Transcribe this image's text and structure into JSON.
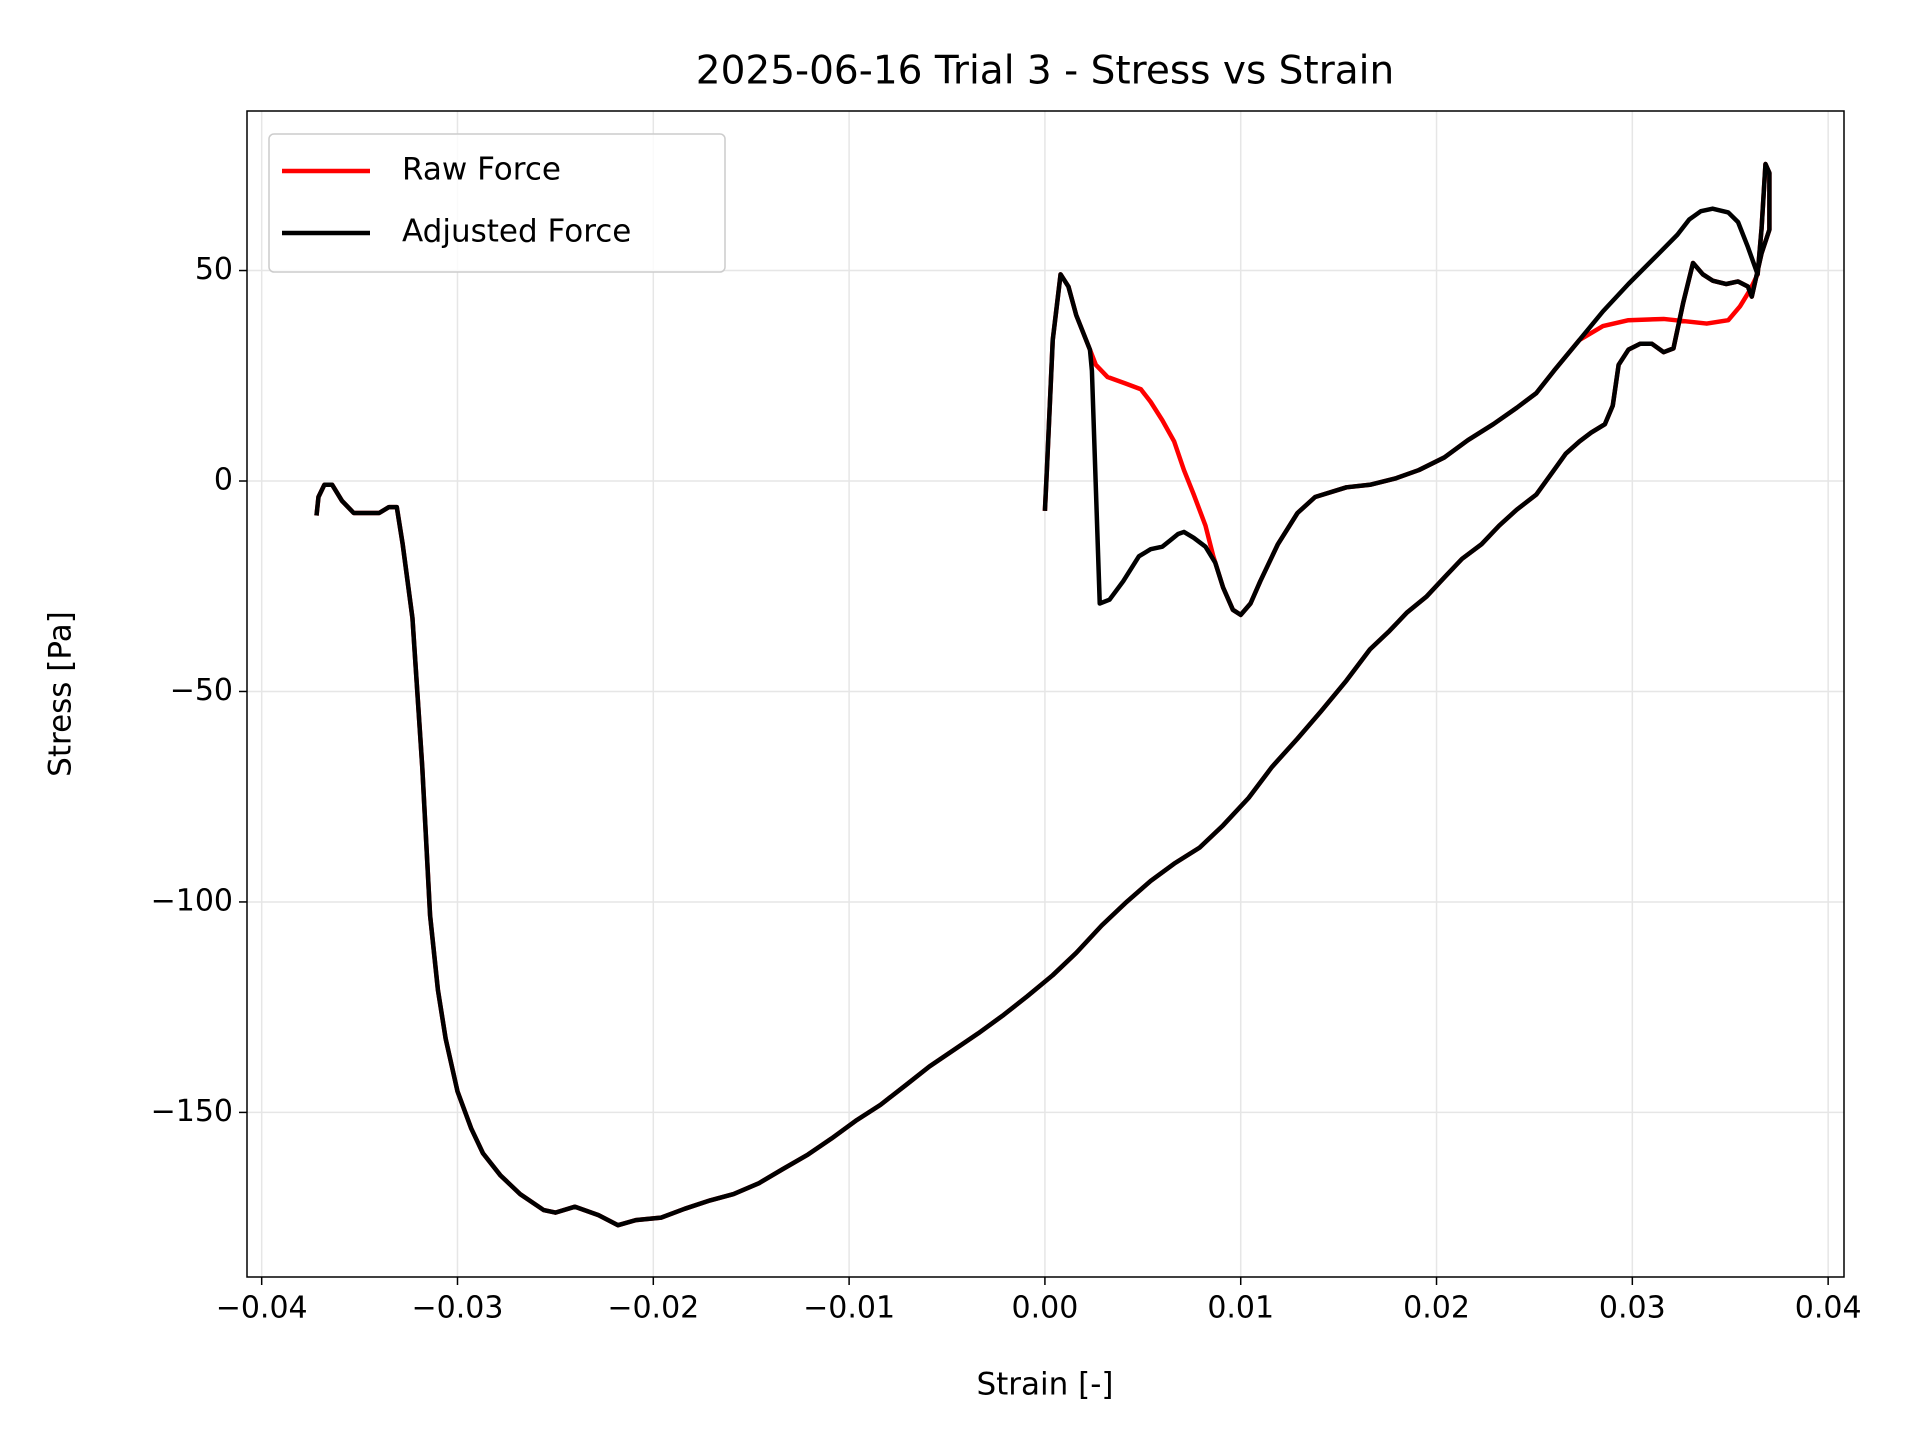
{
  "chart_data": {
    "type": "line",
    "title": "2025-06-16 Trial 3 - Stress vs Strain",
    "x_label": "Strain [-]",
    "y_label": "Stress [Pa]",
    "xlim": [
      -0.04075,
      0.04081
    ],
    "ylim": [
      -189.1,
      87.9
    ],
    "xticks": [
      {
        "value": -0.04,
        "label": "−0.04"
      },
      {
        "value": -0.03,
        "label": "−0.03"
      },
      {
        "value": -0.02,
        "label": "−0.02"
      },
      {
        "value": -0.01,
        "label": "−0.01"
      },
      {
        "value": 0,
        "label": "0.00"
      },
      0.01,
      0.02,
      0.03,
      0.04
    ],
    "yticks": [
      {
        "value": -150,
        "label": "−150"
      },
      {
        "value": -100,
        "label": "−100"
      },
      {
        "value": -50,
        "label": "−50"
      },
      0,
      50
    ],
    "grid": true,
    "legend": "upper left",
    "series": [
      {
        "name": "Raw Force",
        "color": "#ff0000",
        "x": [
          0.0,
          0.0001,
          0.0004,
          0.0008,
          0.0012,
          0.0016,
          0.0023,
          0.0026,
          0.0032,
          0.0041,
          0.0049,
          0.0054,
          0.006,
          0.0066,
          0.0071,
          0.0076,
          0.0082,
          0.0086,
          0.0091,
          0.0096,
          0.01,
          0.0105,
          0.011,
          0.0119,
          0.0129,
          0.0138,
          0.0154,
          0.0166,
          0.0179,
          0.0191,
          0.0204,
          0.0216,
          0.0229,
          0.0241,
          0.0251,
          0.026,
          0.0273,
          0.0285,
          0.0298,
          0.0316,
          0.0338,
          0.0349,
          0.0355,
          0.036,
          0.0364,
          0.0366,
          0.0368,
          0.037,
          0.037,
          0.0366,
          0.0361,
          0.0359,
          0.0354,
          0.0348,
          0.0341,
          0.0336,
          0.0331,
          0.0326,
          0.0321,
          0.0316,
          0.031,
          0.0304,
          0.0298,
          0.0293,
          0.029,
          0.0286,
          0.0279,
          0.0273,
          0.0266,
          0.026,
          0.0251,
          0.0241,
          0.0232,
          0.0223,
          0.0213,
          0.0204,
          0.0195,
          0.0185,
          0.0176,
          0.0166,
          0.0154,
          0.0141,
          0.0129,
          0.0116,
          0.0104,
          0.0091,
          0.0079,
          0.0066,
          0.0054,
          0.0041,
          0.0029,
          0.0016,
          0.0004,
          -0.0009,
          -0.0021,
          -0.0034,
          -0.0046,
          -0.0059,
          -0.0071,
          -0.0084,
          -0.0096,
          -0.0109,
          -0.0121,
          -0.0134,
          -0.0146,
          -0.0159,
          -0.0171,
          -0.0184,
          -0.0196,
          -0.0209,
          -0.0218,
          -0.0228,
          -0.024,
          -0.025,
          -0.0256,
          -0.0268,
          -0.0278,
          -0.0287,
          -0.0293,
          -0.03,
          -0.0306,
          -0.031,
          -0.0314,
          -0.0318,
          -0.0323,
          -0.0328,
          -0.0331,
          -0.0335,
          -0.034,
          -0.0346,
          -0.0353,
          -0.0359,
          -0.0364,
          -0.0368,
          -0.0371,
          -0.0372
        ],
        "values": [
          -7.1,
          2.6,
          33.5,
          49.1,
          46.2,
          39.4,
          31.2,
          27.6,
          24.7,
          23.2,
          21.8,
          18.8,
          14.4,
          9.4,
          2.6,
          -3.2,
          -10.6,
          -17.9,
          -25.3,
          -30.6,
          -31.8,
          -29.1,
          -23.8,
          -15.0,
          -7.6,
          -3.8,
          -1.5,
          -0.9,
          0.6,
          2.6,
          5.6,
          9.7,
          13.5,
          17.4,
          20.9,
          26.2,
          33.5,
          36.8,
          38.2,
          38.5,
          37.4,
          38.2,
          41.5,
          45.3,
          49.1,
          60.0,
          75.3,
          73.2,
          59.7,
          54.1,
          43.8,
          46.2,
          47.4,
          46.8,
          47.6,
          49.1,
          51.8,
          42.4,
          31.5,
          30.6,
          32.6,
          32.6,
          31.2,
          27.6,
          17.9,
          13.5,
          11.5,
          9.4,
          6.5,
          2.6,
          -3.2,
          -6.8,
          -10.6,
          -15.0,
          -18.5,
          -22.9,
          -27.4,
          -31.2,
          -35.6,
          -40.0,
          -47.4,
          -54.7,
          -61.2,
          -67.9,
          -75.3,
          -81.8,
          -87.1,
          -90.9,
          -95.0,
          -100.3,
          -105.6,
          -112.1,
          -117.4,
          -122.4,
          -126.8,
          -131.2,
          -135.0,
          -139.1,
          -143.5,
          -148.2,
          -151.8,
          -156.2,
          -160.0,
          -163.5,
          -166.8,
          -169.4,
          -170.9,
          -172.9,
          -175.0,
          -175.6,
          -176.8,
          -174.4,
          -172.4,
          -173.8,
          -173.2,
          -169.4,
          -165.0,
          -159.7,
          -153.8,
          -145.0,
          -132.6,
          -120.9,
          -103.2,
          -67.9,
          -32.6,
          -15.0,
          -6.2,
          -6.2,
          -7.6,
          -7.6,
          -7.6,
          -4.7,
          -0.9,
          -0.9,
          -3.8,
          -8.2
        ]
      },
      {
        "name": "Adjusted Force",
        "color": "#000000",
        "x": [
          0.0,
          0.0001,
          0.0004,
          0.0008,
          0.0012,
          0.0016,
          0.0023,
          0.0024,
          0.0028,
          0.0033,
          0.004,
          0.0048,
          0.0054,
          0.006,
          0.0064,
          0.0068,
          0.0071,
          0.0076,
          0.0082,
          0.0087,
          0.0091,
          0.0096,
          0.01,
          0.0105,
          0.011,
          0.0119,
          0.0129,
          0.0138,
          0.0154,
          0.0166,
          0.0179,
          0.0191,
          0.0204,
          0.0216,
          0.0229,
          0.0241,
          0.0251,
          0.026,
          0.0273,
          0.0285,
          0.0298,
          0.0313,
          0.0323,
          0.0329,
          0.0335,
          0.0341,
          0.0349,
          0.0354,
          0.0359,
          0.0364,
          0.0366,
          0.0368,
          0.037,
          0.037,
          0.0366,
          0.0361,
          0.0359,
          0.0354,
          0.0348,
          0.0341,
          0.0336,
          0.0331,
          0.0326,
          0.0321,
          0.0316,
          0.031,
          0.0304,
          0.0298,
          0.0293,
          0.029,
          0.0286,
          0.0279,
          0.0273,
          0.0266,
          0.026,
          0.0251,
          0.0241,
          0.0232,
          0.0223,
          0.0213,
          0.0204,
          0.0195,
          0.0185,
          0.0176,
          0.0166,
          0.0154,
          0.0141,
          0.0129,
          0.0116,
          0.0104,
          0.0091,
          0.0079,
          0.0066,
          0.0054,
          0.0041,
          0.0029,
          0.0016,
          0.0004,
          -0.0009,
          -0.0021,
          -0.0034,
          -0.0046,
          -0.0059,
          -0.0071,
          -0.0084,
          -0.0096,
          -0.0109,
          -0.0121,
          -0.0134,
          -0.0146,
          -0.0159,
          -0.0171,
          -0.0184,
          -0.0196,
          -0.0209,
          -0.0218,
          -0.0228,
          -0.024,
          -0.025,
          -0.0256,
          -0.0268,
          -0.0278,
          -0.0287,
          -0.0293,
          -0.03,
          -0.0306,
          -0.031,
          -0.0314,
          -0.0318,
          -0.0323,
          -0.0328,
          -0.0331,
          -0.0335,
          -0.034,
          -0.0346,
          -0.0353,
          -0.0359,
          -0.0364,
          -0.0368,
          -0.0371,
          -0.0372
        ],
        "values": [
          -7.1,
          2.6,
          33.5,
          49.1,
          46.2,
          39.4,
          31.2,
          26.2,
          -29.1,
          -28.2,
          -23.8,
          -17.9,
          -16.2,
          -15.6,
          -14.1,
          -12.6,
          -12.1,
          -13.5,
          -15.6,
          -19.4,
          -25.3,
          -30.6,
          -31.8,
          -29.1,
          -23.8,
          -15.0,
          -7.6,
          -3.8,
          -1.5,
          -0.9,
          0.6,
          2.6,
          5.6,
          9.7,
          13.5,
          17.4,
          20.9,
          26.2,
          33.5,
          40.3,
          46.8,
          53.8,
          58.5,
          62.1,
          64.1,
          64.7,
          63.8,
          61.5,
          55.6,
          49.1,
          60.0,
          75.3,
          73.2,
          59.7,
          54.1,
          43.8,
          46.2,
          47.4,
          46.8,
          47.6,
          49.1,
          51.8,
          42.4,
          31.5,
          30.6,
          32.6,
          32.6,
          31.2,
          27.6,
          17.9,
          13.5,
          11.5,
          9.4,
          6.5,
          2.6,
          -3.2,
          -6.8,
          -10.6,
          -15.0,
          -18.5,
          -22.9,
          -27.4,
          -31.2,
          -35.6,
          -40.0,
          -47.4,
          -54.7,
          -61.2,
          -67.9,
          -75.3,
          -81.8,
          -87.1,
          -90.9,
          -95.0,
          -100.3,
          -105.6,
          -112.1,
          -117.4,
          -122.4,
          -126.8,
          -131.2,
          -135.0,
          -139.1,
          -143.5,
          -148.2,
          -151.8,
          -156.2,
          -160.0,
          -163.5,
          -166.8,
          -169.4,
          -170.9,
          -172.9,
          -175.0,
          -175.6,
          -176.8,
          -174.4,
          -172.4,
          -173.8,
          -173.2,
          -169.4,
          -165.0,
          -159.7,
          -153.8,
          -145.0,
          -132.6,
          -120.9,
          -103.2,
          -67.9,
          -32.6,
          -15.0,
          -6.2,
          -6.2,
          -7.6,
          -7.6,
          -7.6,
          -4.7,
          -0.9,
          -0.9,
          -3.8,
          -8.2
        ]
      }
    ]
  }
}
